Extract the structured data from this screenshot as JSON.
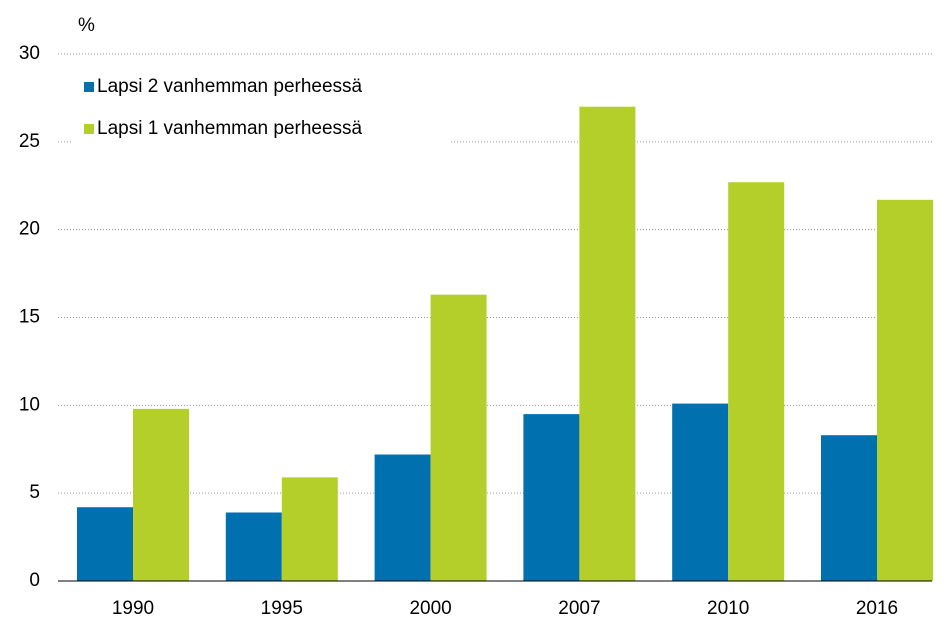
{
  "chart_data": {
    "type": "bar",
    "y_label": "%",
    "categories": [
      "1990",
      "1995",
      "2000",
      "2007",
      "2010",
      "2016"
    ],
    "series": [
      {
        "name": "Lapsi 2 vanhemman perheessä",
        "color": "#0070ae",
        "values": [
          4.2,
          3.9,
          7.2,
          9.5,
          10.1,
          8.3
        ]
      },
      {
        "name": "Lapsi 1 vanhemman perheessä",
        "color": "#b5cf2a",
        "values": [
          9.8,
          5.9,
          16.3,
          27.0,
          22.7,
          21.7
        ]
      }
    ],
    "ylim": [
      0,
      30
    ],
    "yticks": [
      0,
      5,
      10,
      15,
      20,
      25,
      30
    ],
    "grid": true,
    "legend": "upper left"
  }
}
